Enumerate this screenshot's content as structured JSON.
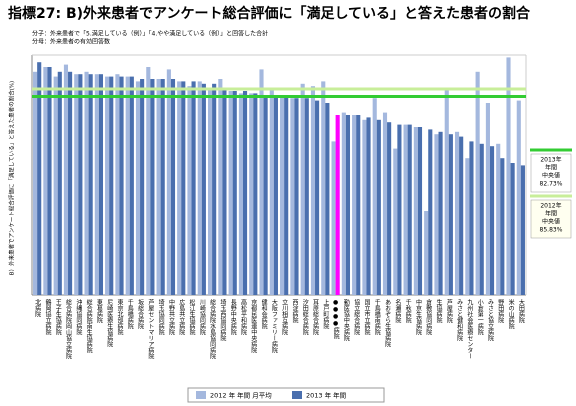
{
  "chart_data": {
    "type": "bar",
    "title": "指標27:  B)外来患者でアンケート総合評価に「満足している」と答えた患者の割合",
    "notes": [
      "分子：外来患者で「5.満足している（例）」「4.やや満足している（例）」と回答した合計",
      "分母：外来患者の有効回答数"
    ],
    "y_label": "B）外来患者でアンケート総合評価に「満足している」と答えた患者の割合(%)",
    "categories": [
      "北病院",
      "鶴岡協立病院",
      "王子生協病院",
      "総合病院岡山協立病院",
      "沖縄協同病院",
      "総合病院南生協病院",
      "東葛病院",
      "尼崎医療生協病院",
      "東京北部病院",
      "千鳥橋病院",
      "坂総合病院",
      "芦屋セントマリア病院",
      "埼玉協同病院",
      "中野共立病院",
      "広島共立病院",
      "松江生協病院",
      "川崎協同病院",
      "総合病院水島協同病院",
      "埼玉西協同病院",
      "長野中央病院",
      "高松平和病院",
      "京都民医連中央病院",
      "健和会病院",
      "大阪ファミリー病院",
      "立川相互病院",
      "西淀病院",
      "汐田総合病院",
      "耳原総合病院",
      "上戸町病院",
      "●●●●病院",
      "勤医協中央病院",
      "協立総合病院",
      "国立市立病院",
      "千鳥橋南病院",
      "あおぞら生協病院",
      "名瀬病院",
      "千秋病院",
      "中京生協病院",
      "倉敷協同病院",
      "生協病院",
      "芦屋病院",
      "みさと健和病院",
      "九州社会医療センター",
      "小倉第一病院",
      "みさと協立病院",
      "野田病院",
      "米の山病院",
      "大田病院"
    ],
    "series": [
      {
        "name": "2012 年 年間 月平均",
        "color": "#a4b8de",
        "values": [
          93,
          95,
          91,
          96,
          92,
          93,
          92,
          91,
          92,
          91,
          89,
          95,
          90,
          94,
          89,
          87,
          89,
          86,
          90,
          85,
          84,
          84,
          94,
          86,
          83,
          82,
          88,
          87,
          89,
          64,
          76,
          75,
          73,
          82,
          76,
          61,
          71,
          70,
          35,
          67,
          86,
          68,
          57,
          93,
          80,
          63,
          99,
          81
        ]
      },
      {
        "name": "2013 年 年間",
        "color": "#4a6fae",
        "values": [
          97,
          95,
          93,
          93,
          92,
          92,
          92,
          91,
          91,
          91,
          90,
          90,
          90,
          90,
          89,
          89,
          88,
          88,
          86,
          85,
          85,
          84,
          83,
          83,
          83,
          82,
          82,
          81,
          80,
          75,
          75,
          75,
          74,
          73,
          72,
          71,
          71,
          70,
          69,
          68,
          67,
          66,
          64,
          63,
          62,
          57,
          55,
          54
        ]
      }
    ],
    "highlight_category": "●●●●病院",
    "highlight_color": "#ff00ff",
    "reference_lines": [
      {
        "lines": [
          "2013年",
          "年間",
          "中央値"
        ],
        "value": 82.73,
        "value_label": "82.73%",
        "color": "#33cc33",
        "box_fill": "#ffffff"
      },
      {
        "lines": [
          "2012年",
          "年間",
          "中央値"
        ],
        "value": 85.83,
        "value_label": "85.83%",
        "color": "#c8ee9a",
        "box_fill": "#fffff0"
      }
    ],
    "ylim": [
      0,
      100
    ]
  }
}
